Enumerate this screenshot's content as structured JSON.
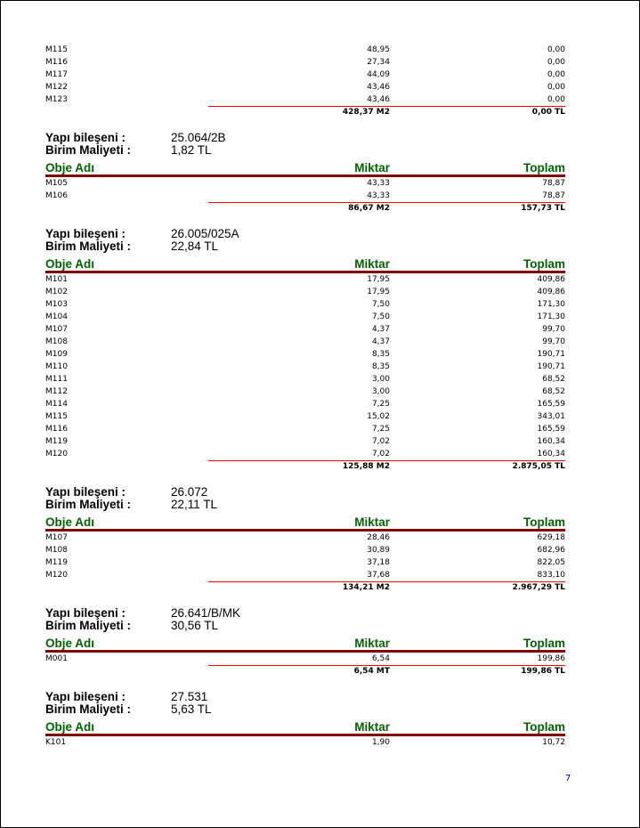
{
  "labels": {
    "component": "Yapı bileşeni :",
    "unit_cost": "Birim Maliyeti :",
    "col_name": "Obje Adı",
    "col_qty": "Miktar",
    "col_total": "Toplam"
  },
  "sections": [
    {
      "component": null,
      "unit_cost": null,
      "header": false,
      "rows": [
        [
          "M115",
          "48,95",
          "0,00"
        ],
        [
          "M116",
          "27,34",
          "0,00"
        ],
        [
          "M117",
          "44,09",
          "0,00"
        ],
        [
          "M122",
          "43,46",
          "0,00"
        ],
        [
          "M123",
          "43,46",
          "0,00"
        ]
      ],
      "total_qty": "428,37 M2",
      "total_sum": "0,00 TL"
    },
    {
      "component": "25.064/2B",
      "unit_cost": "1,82 TL",
      "header": true,
      "rows": [
        [
          "M105",
          "43,33",
          "78,87"
        ],
        [
          "M106",
          "43,33",
          "78,87"
        ]
      ],
      "total_qty": "86,67 M2",
      "total_sum": "157,73 TL"
    },
    {
      "component": "26.005/025A",
      "unit_cost": "22,84 TL",
      "header": true,
      "rows": [
        [
          "M101",
          "17,95",
          "409,86"
        ],
        [
          "M102",
          "17,95",
          "409,86"
        ],
        [
          "M103",
          "7,50",
          "171,30"
        ],
        [
          "M104",
          "7,50",
          "171,30"
        ],
        [
          "M107",
          "4,37",
          "99,70"
        ],
        [
          "M108",
          "4,37",
          "99,70"
        ],
        [
          "M109",
          "8,35",
          "190,71"
        ],
        [
          "M110",
          "8,35",
          "190,71"
        ],
        [
          "M111",
          "3,00",
          "68,52"
        ],
        [
          "M112",
          "3,00",
          "68,52"
        ],
        [
          "M114",
          "7,25",
          "165,59"
        ],
        [
          "M115",
          "15,02",
          "343,01"
        ],
        [
          "M116",
          "7,25",
          "165,59"
        ],
        [
          "M119",
          "7,02",
          "160,34"
        ],
        [
          "M120",
          "7,02",
          "160,34"
        ]
      ],
      "total_qty": "125,88 M2",
      "total_sum": "2.875,05 TL"
    },
    {
      "component": "26.072",
      "unit_cost": "22,11 TL",
      "header": true,
      "rows": [
        [
          "M107",
          "28,46",
          "629,18"
        ],
        [
          "M108",
          "30,89",
          "682,96"
        ],
        [
          "M119",
          "37,18",
          "822,05"
        ],
        [
          "M120",
          "37,68",
          "833,10"
        ]
      ],
      "total_qty": "134,21 M2",
      "total_sum": "2.967,29 TL"
    },
    {
      "component": "26.641/B/MK",
      "unit_cost": "30,56 TL",
      "header": true,
      "rows": [
        [
          "M001",
          "6,54",
          "199,86"
        ]
      ],
      "total_qty": "6,54 MT",
      "total_sum": "199,86 TL"
    },
    {
      "component": "27.531",
      "unit_cost": "5,63 TL",
      "header": true,
      "rows": [
        [
          "K101",
          "1,90",
          "10,72"
        ]
      ],
      "total_qty": null,
      "total_sum": null
    }
  ],
  "page_number": "7"
}
